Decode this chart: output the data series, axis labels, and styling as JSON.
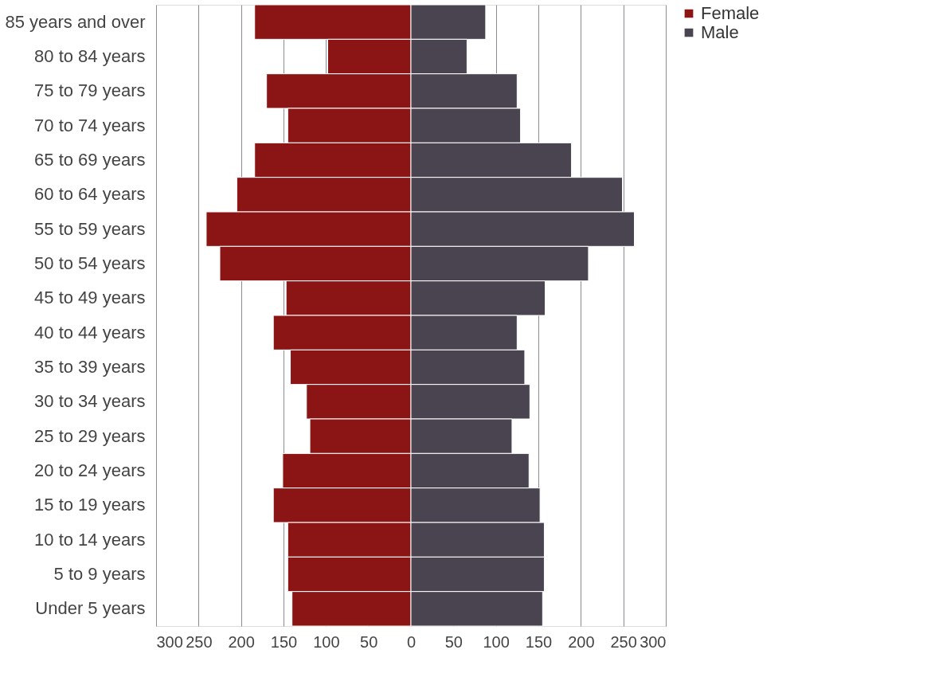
{
  "chart_data": {
    "type": "bar",
    "orientation": "horizontal",
    "stacked": true,
    "categories": [
      "85 years and over",
      "80 to 84 years",
      "75 to 79 years",
      "70 to 74 years",
      "65 to 69 years",
      "60 to 64 years",
      "55 to 59 years",
      "50 to 54 years",
      "45 to 49 years",
      "40 to 44 years",
      "35 to 39 years",
      "30 to 34 years",
      "25 to 29 years",
      "20 to 24 years",
      "15 to 19 years",
      "10 to 14 years",
      "5 to 9 years",
      "Under 5 years"
    ],
    "series": [
      {
        "name": "Female",
        "color": "#8b1414",
        "values": [
          -184,
          -98,
          -170,
          -145,
          -184,
          -205,
          -241,
          -225,
          -147,
          -162,
          -142,
          -123,
          -119,
          -151,
          -162,
          -145,
          -145,
          -140
        ]
      },
      {
        "name": "Male",
        "color": "#4a4450",
        "values": [
          88,
          66,
          125,
          129,
          189,
          249,
          263,
          209,
          158,
          125,
          134,
          140,
          119,
          139,
          152,
          157,
          157,
          155
        ]
      }
    ],
    "xlim": [
      -300,
      300
    ],
    "xticks": [
      {
        "value": -300,
        "label": "300"
      },
      {
        "value": -250,
        "label": "250"
      },
      {
        "value": -200,
        "label": "200"
      },
      {
        "value": -150,
        "label": "150"
      },
      {
        "value": -100,
        "label": "100"
      },
      {
        "value": -50,
        "label": "50"
      },
      0,
      50,
      100,
      150,
      200,
      250,
      300
    ],
    "grid": "x",
    "legend": "right"
  }
}
